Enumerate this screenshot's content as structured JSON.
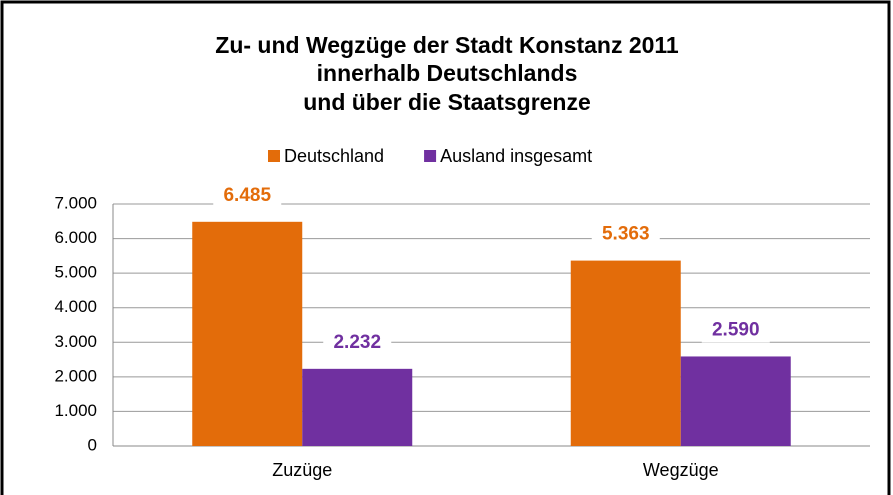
{
  "chart_data": {
    "type": "bar",
    "title": [
      "Zu- und Wegzüge der Stadt Konstanz 2011",
      "innerhalb Deutschlands",
      "und über die Staatsgrenze"
    ],
    "categories": [
      "Zuzüge",
      "Wegzüge"
    ],
    "series": [
      {
        "name": "Deutschland",
        "color": "#e36c0a",
        "values": [
          6485,
          5363
        ],
        "value_labels": [
          "6.485",
          "5.363"
        ]
      },
      {
        "name": "Ausland insgesamt",
        "color": "#7030a0",
        "values": [
          2232,
          2590
        ],
        "value_labels": [
          "2.232",
          "2.590"
        ]
      }
    ],
    "ylim": [
      0,
      7000
    ],
    "yticks": [
      0,
      {
        "value": 1000,
        "label": "1.000"
      },
      {
        "value": 2000,
        "label": "2.000"
      },
      {
        "value": 3000,
        "label": "3.000"
      },
      {
        "value": 4000,
        "label": "4.000"
      },
      {
        "value": 5000,
        "label": "5.000"
      },
      {
        "value": 6000,
        "label": "6.000"
      },
      {
        "value": 7000,
        "label": "7.000"
      }
    ],
    "grid": true,
    "legend": "top"
  }
}
